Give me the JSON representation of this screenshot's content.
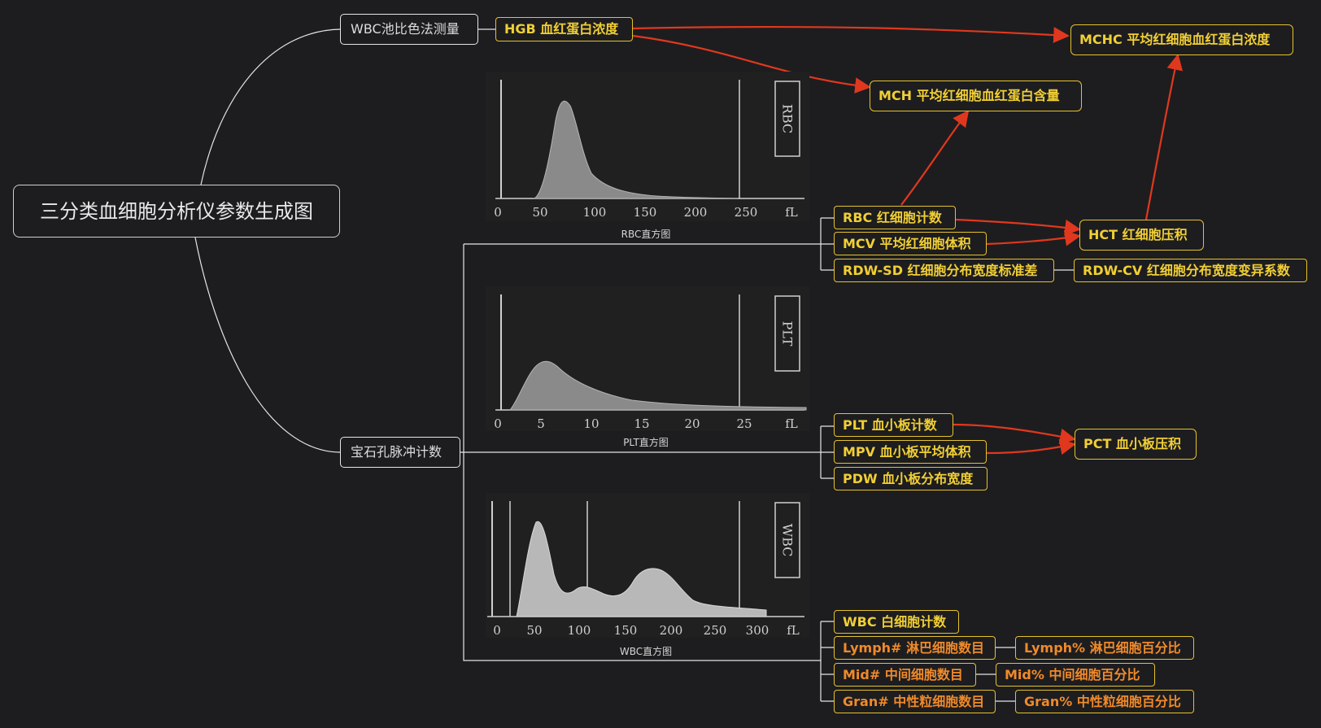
{
  "root": {
    "title": "三分类血细胞分析仪参数生成图"
  },
  "methods": {
    "colorimetry": "WBC池比色法测量",
    "impedance": "宝石孔脉冲计数"
  },
  "params": {
    "hgb": "HGB 血红蛋白浓度",
    "mchc": "MCHC 平均红细胞血红蛋白浓度",
    "mch": "MCH 平均红细胞血红蛋白含量",
    "rbc": "RBC 红细胞计数",
    "mcv": "MCV 平均红细胞体积",
    "rdwsd": "RDW-SD 红细胞分布宽度标准差",
    "hct": "HCT 红细胞压积",
    "rdwcv": "RDW-CV 红细胞分布宽度变异系数",
    "plt": "PLT 血小板计数",
    "mpv": "MPV 血小板平均体积",
    "pdw": "PDW 血小板分布宽度",
    "pct": "PCT 血小板压积",
    "wbc": "WBC 白细胞计数",
    "lymph_n": "Lymph# 淋巴细胞数目",
    "lymph_p": "Lymph% 淋巴细胞百分比",
    "mid_n": "Mid# 中间细胞数目",
    "mid_p": "Mid% 中间细胞百分比",
    "gran_n": "Gran# 中性粒细胞数目",
    "gran_p": "Gran% 中性粒细胞百分比"
  },
  "histograms": {
    "rbc": {
      "caption": "RBC直方图",
      "label": "RBC",
      "unit": "fL",
      "ticks": [
        "0",
        "50",
        "100",
        "150",
        "200",
        "250"
      ]
    },
    "plt": {
      "caption": "PLT直方图",
      "label": "PLT",
      "unit": "fL",
      "ticks": [
        "0",
        "5",
        "10",
        "15",
        "20",
        "25"
      ]
    },
    "wbc": {
      "caption": "WBC直方图",
      "label": "WBC",
      "unit": "fL",
      "ticks": [
        "0",
        "50",
        "100",
        "150",
        "200",
        "250",
        "300"
      ]
    }
  },
  "colors": {
    "background": "#1d1d1f",
    "connector": "#e6e6e6",
    "arrow": "#e0381e",
    "param_text": "#f1cf35",
    "param_text_orange": "#f08a2a"
  }
}
